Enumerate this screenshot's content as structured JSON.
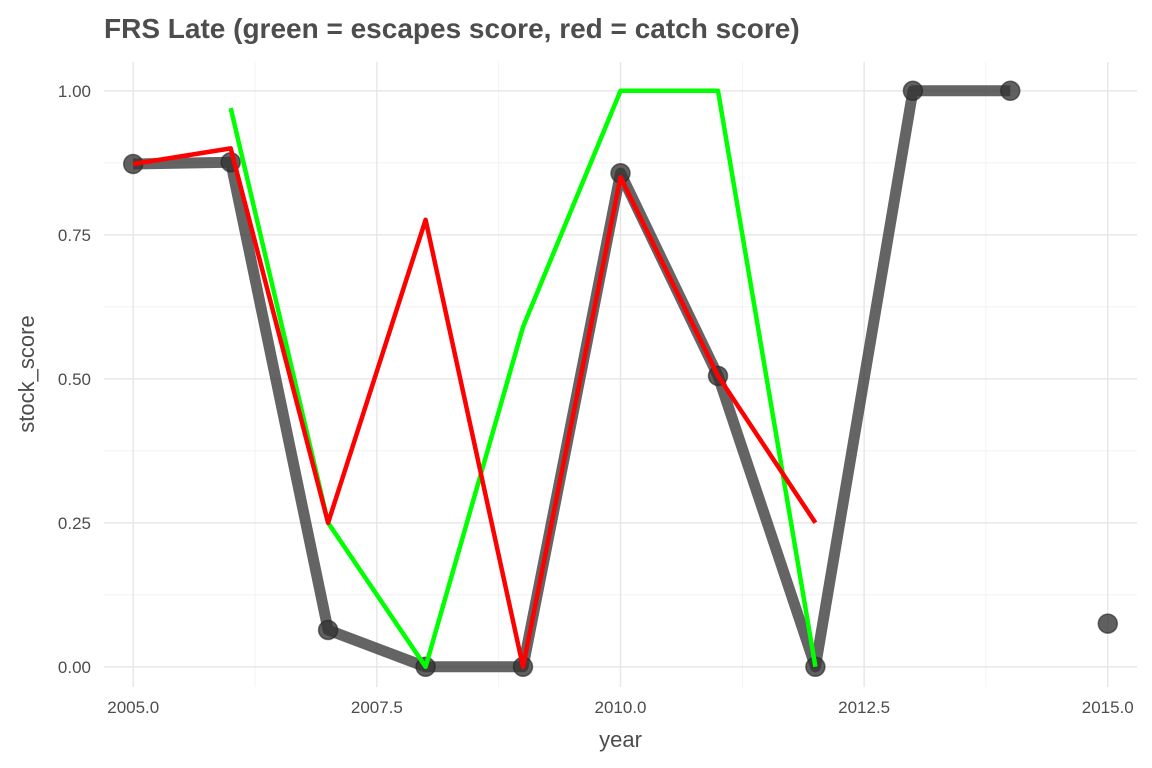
{
  "chart_data": {
    "type": "line",
    "title": "FRS Late (green = escapes score, red = catch score)",
    "xlabel": "year",
    "ylabel": "stock_score",
    "xlim": [
      2004.7,
      2015.3
    ],
    "ylim": [
      -0.035,
      1.05
    ],
    "x_ticks": [
      2005,
      2007.5,
      2010,
      2012.5,
      2015
    ],
    "x_tick_labels": [
      "2005.0",
      "2007.5",
      "2010.0",
      "2012.5",
      "2015.0"
    ],
    "y_ticks": [
      0,
      0.25,
      0.5,
      0.75,
      1
    ],
    "y_tick_labels": [
      "0.00",
      "0.25",
      "0.50",
      "0.75",
      "1.00"
    ],
    "grid": true,
    "legend": "none",
    "series": [
      {
        "color": "#333333",
        "style": "line+points",
        "segments": [
          {
            "x": [
              2005,
              2006,
              2007,
              2008,
              2009,
              2010,
              2011,
              2012,
              2013,
              2014
            ],
            "y": [
              0.873,
              0.876,
              0.064,
              0.0,
              0.0,
              0.857,
              0.505,
              0.0,
              1.0,
              1.0
            ]
          },
          {
            "x": [
              2015
            ],
            "y": [
              0.075
            ]
          }
        ]
      },
      {
        "color": "#00ff00",
        "style": "line",
        "segments": [
          {
            "x": [
              2006,
              2007,
              2008,
              2009,
              2010,
              2011,
              2012
            ],
            "y": [
              0.97,
              0.25,
              0.0,
              0.59,
              1.0,
              1.0,
              0.0
            ]
          }
        ]
      },
      {
        "color": "#ff0000",
        "style": "line",
        "segments": [
          {
            "x": [
              2005,
              2006,
              2007,
              2008,
              2009,
              2010,
              2011,
              2012
            ],
            "y": [
              0.873,
              0.9,
              0.25,
              0.776,
              0.0,
              0.85,
              0.505,
              0.25
            ]
          }
        ]
      }
    ]
  }
}
